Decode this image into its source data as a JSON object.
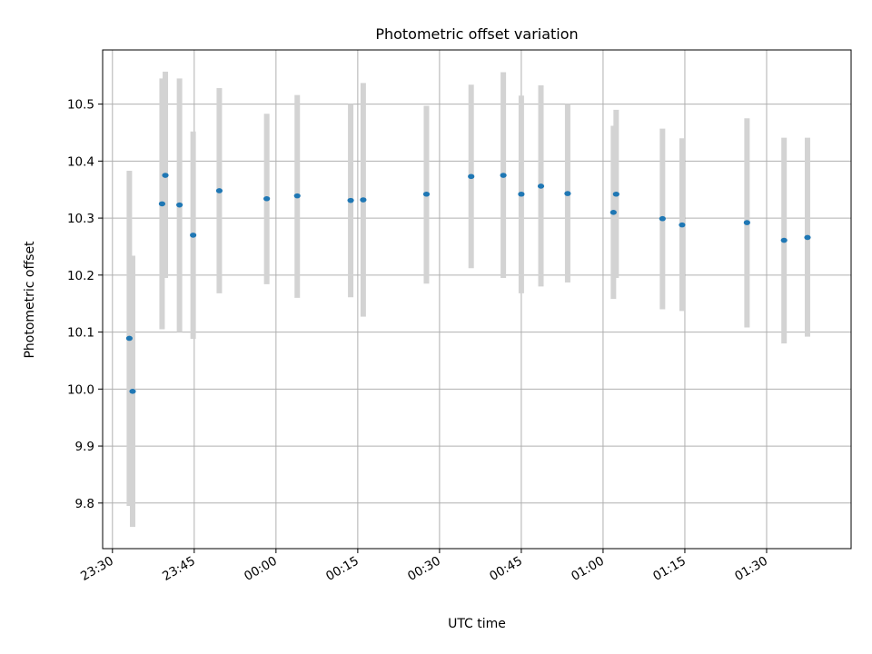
{
  "chart_data": {
    "type": "scatter",
    "title": "Photometric offset variation",
    "xlabel": "UTC time",
    "ylabel": "Photometric offset",
    "x_ticks": [
      "23:30",
      "23:45",
      "00:00",
      "00:15",
      "00:30",
      "00:45",
      "01:00",
      "01:15",
      "01:30"
    ],
    "y_ticks": [
      "9.8",
      "9.9",
      "10.0",
      "10.1",
      "10.2",
      "10.3",
      "10.4",
      "10.5"
    ],
    "xlim": [
      "23:28:12",
      "01:45:30"
    ],
    "ylim": [
      9.72,
      10.595
    ],
    "grid": true,
    "marker_color": "#1f77b4",
    "errorbar_color": "#d3d3d3",
    "points": [
      {
        "x": "23:33:06",
        "y": 10.089,
        "low": 9.795,
        "high": 10.383
      },
      {
        "x": "23:33:42",
        "y": 9.996,
        "low": 9.758,
        "high": 10.234
      },
      {
        "x": "23:39:06",
        "y": 10.325,
        "low": 10.105,
        "high": 10.545
      },
      {
        "x": "23:39:42",
        "y": 10.375,
        "low": 10.195,
        "high": 10.557
      },
      {
        "x": "23:42:18",
        "y": 10.323,
        "low": 10.1,
        "high": 10.545
      },
      {
        "x": "23:44:48",
        "y": 10.27,
        "low": 10.088,
        "high": 10.452
      },
      {
        "x": "23:49:36",
        "y": 10.348,
        "low": 10.168,
        "high": 10.528
      },
      {
        "x": "23:58:18",
        "y": 10.334,
        "low": 10.184,
        "high": 10.483
      },
      {
        "x": "00:03:54",
        "y": 10.339,
        "low": 10.16,
        "high": 10.516
      },
      {
        "x": "00:13:42",
        "y": 10.331,
        "low": 10.161,
        "high": 10.5
      },
      {
        "x": "00:16:00",
        "y": 10.332,
        "low": 10.127,
        "high": 10.537
      },
      {
        "x": "00:27:36",
        "y": 10.342,
        "low": 10.185,
        "high": 10.497
      },
      {
        "x": "00:35:48",
        "y": 10.373,
        "low": 10.212,
        "high": 10.534
      },
      {
        "x": "00:41:42",
        "y": 10.375,
        "low": 10.195,
        "high": 10.556
      },
      {
        "x": "00:45:00",
        "y": 10.342,
        "low": 10.168,
        "high": 10.515
      },
      {
        "x": "00:48:36",
        "y": 10.356,
        "low": 10.18,
        "high": 10.533
      },
      {
        "x": "00:53:30",
        "y": 10.343,
        "low": 10.187,
        "high": 10.5
      },
      {
        "x": "01:01:54",
        "y": 10.31,
        "low": 10.158,
        "high": 10.462
      },
      {
        "x": "01:02:24",
        "y": 10.342,
        "low": 10.195,
        "high": 10.49
      },
      {
        "x": "01:10:54",
        "y": 10.299,
        "low": 10.14,
        "high": 10.457
      },
      {
        "x": "01:14:30",
        "y": 10.288,
        "low": 10.137,
        "high": 10.44
      },
      {
        "x": "01:26:24",
        "y": 10.292,
        "low": 10.108,
        "high": 10.475
      },
      {
        "x": "01:33:12",
        "y": 10.261,
        "low": 10.08,
        "high": 10.441
      },
      {
        "x": "01:37:30",
        "y": 10.266,
        "low": 10.092,
        "high": 10.441
      }
    ]
  }
}
